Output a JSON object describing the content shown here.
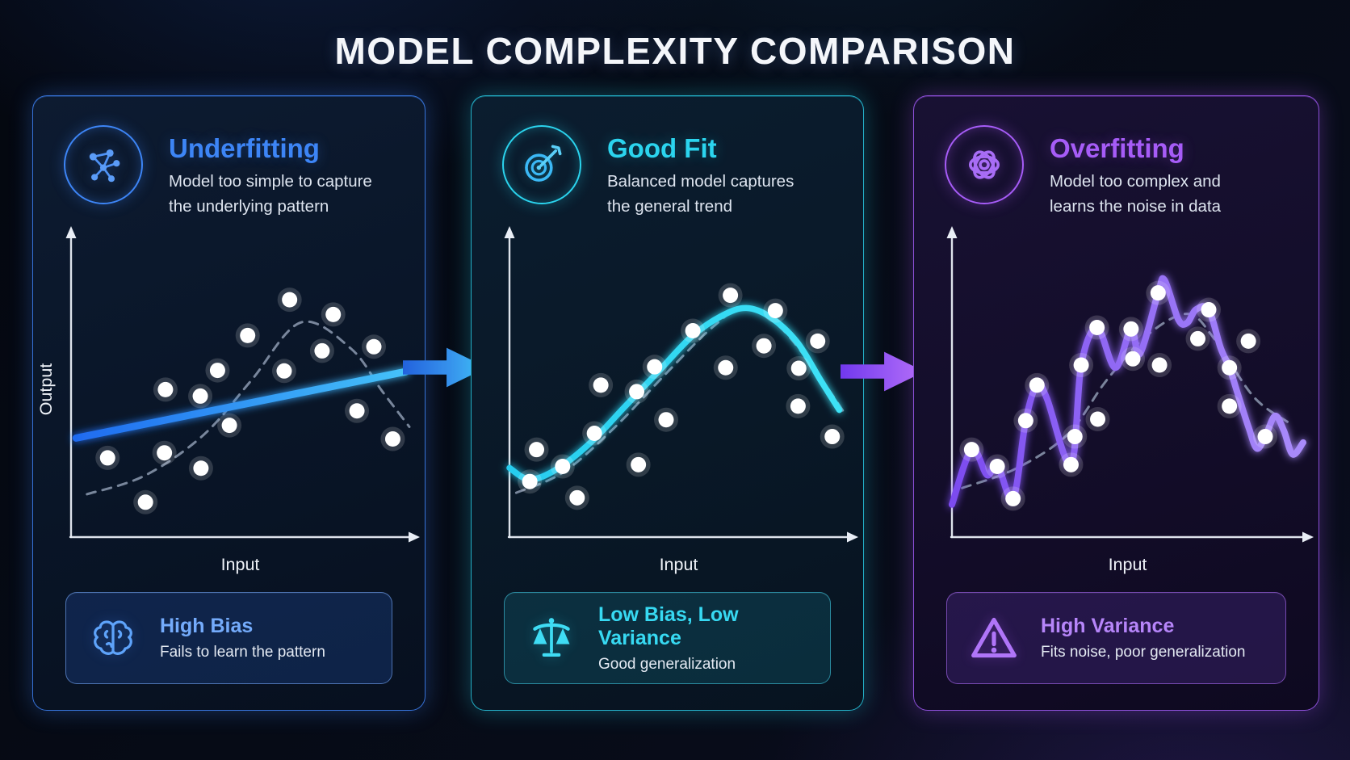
{
  "page": {
    "title": "MODEL COMPLEXITY COMPARISON"
  },
  "panels": [
    {
      "id": "underfitting",
      "title": "Underfitting",
      "description": "Model too simple to capture the underlying pattern",
      "icon": "network-icon",
      "accent": "#3d85f6",
      "accent_border": "rgba(62,130,246,0.85)",
      "accent_soft": "rgba(59,130,246,0.32)",
      "badge": {
        "icon": "brain-icon",
        "title": "High Bias",
        "subtitle": "Fails to learn the pattern",
        "bg": "rgba(43,98,216,0.22)",
        "border": "rgba(120,170,250,0.6)",
        "title_color": "#74abfb"
      }
    },
    {
      "id": "good-fit",
      "title": "Good Fit",
      "description": "Balanced model captures the general trend",
      "icon": "target-icon",
      "accent": "#2bd4ee",
      "accent_border": "rgba(43,212,238,0.8)",
      "accent_soft": "rgba(34,211,238,0.3)",
      "badge": {
        "icon": "scale-icon",
        "title": "Low Bias, Low Variance",
        "subtitle": "Good generalization",
        "bg": "rgba(24,135,160,0.22)",
        "border": "rgba(70,215,240,0.55)",
        "title_color": "#37d9f2"
      }
    },
    {
      "id": "overfitting",
      "title": "Overfitting",
      "description": "Model too complex and learns the noise in data",
      "icon": "knot-icon",
      "accent": "#a65cf7",
      "accent_border": "rgba(160,90,245,0.85)",
      "accent_soft": "rgba(168,85,247,0.32)",
      "badge": {
        "icon": "warning-icon",
        "title": "High Variance",
        "subtitle": "Fits noise, poor generalization",
        "bg": "rgba(120,70,220,0.2)",
        "border": "rgba(175,110,248,0.6)",
        "title_color": "#b685f9"
      }
    }
  ],
  "arrows": [
    {
      "direction": "right",
      "color_start": "#2262dd",
      "color_end": "#47b8f8"
    },
    {
      "direction": "right",
      "color_start": "#7138ee",
      "color_end": "#b672f9"
    }
  ],
  "chart_data": [
    {
      "type": "scatter",
      "title": "Underfitting",
      "xlabel": "Input",
      "ylabel": "Output",
      "x_range": [
        0,
        100
      ],
      "y_range": [
        0,
        100
      ],
      "grid": false,
      "points": [
        [
          10.8,
          26.8
        ],
        [
          22,
          11.8
        ],
        [
          27.9,
          49.9
        ],
        [
          27.6,
          28.5
        ],
        [
          38.2,
          47.7
        ],
        [
          38.4,
          23.3
        ],
        [
          43.3,
          56.4
        ],
        [
          46.8,
          37.8
        ],
        [
          52.2,
          68.2
        ],
        [
          63,
          56.2
        ],
        [
          64.6,
          80.3
        ],
        [
          74.2,
          63
        ],
        [
          77.5,
          75.3
        ],
        [
          84.5,
          42.7
        ],
        [
          89.5,
          64.4
        ],
        [
          95.1,
          33.2
        ]
      ],
      "point_color": "#ffffff",
      "fit": {
        "type": "line",
        "label": "linear model fit",
        "points": [
          [
            1.5,
            33.5
          ],
          [
            99,
            56
          ]
        ],
        "color_start": "#1f6bf0",
        "color_end": "#45c2f9",
        "width": 9
      },
      "true_curve": {
        "style": "dashed",
        "label": "underlying pattern",
        "color": "#95a3b9",
        "points": [
          [
            4.7,
            14.5
          ],
          [
            21.8,
            20.8
          ],
          [
            39.1,
            34.5
          ],
          [
            53.2,
            52.9
          ],
          [
            67.9,
            72.6
          ],
          [
            82.7,
            63.8
          ],
          [
            92,
            49.3
          ],
          [
            100,
            37.3
          ]
        ]
      }
    },
    {
      "type": "scatter",
      "title": "Good Fit",
      "xlabel": "Input",
      "ylabel": "",
      "x_range": [
        0,
        100
      ],
      "y_range": [
        0,
        100
      ],
      "grid": false,
      "points": [
        [
          6,
          18.8
        ],
        [
          8,
          29.6
        ],
        [
          15.7,
          23.9
        ],
        [
          20,
          13.3
        ],
        [
          25.1,
          35.1
        ],
        [
          27,
          51.4
        ],
        [
          37.6,
          49.2
        ],
        [
          38.1,
          24.5
        ],
        [
          42.9,
          57.6
        ],
        [
          46.3,
          39.7
        ],
        [
          54.2,
          69.8
        ],
        [
          63.9,
          57.3
        ],
        [
          65.3,
          81.8
        ],
        [
          75.2,
          64.7
        ],
        [
          78.6,
          76.6
        ],
        [
          85.5,
          57.1
        ],
        [
          85.3,
          44.3
        ],
        [
          91.1,
          66.3
        ],
        [
          95.4,
          34
        ]
      ],
      "point_color": "#ffffff",
      "fit": {
        "type": "curve",
        "label": "balanced model fit",
        "points": [
          [
            0,
            23.4
          ],
          [
            6,
            19.5
          ],
          [
            14,
            23
          ],
          [
            24,
            32
          ],
          [
            34,
            44
          ],
          [
            44,
            56
          ],
          [
            54,
            68
          ],
          [
            63,
            75
          ],
          [
            70,
            77.5
          ],
          [
            77,
            74.5
          ],
          [
            85,
            66
          ],
          [
            92,
            53
          ],
          [
            97.5,
            43
          ]
        ],
        "color_start": "#27cdef",
        "color_end": "#3ee2f6",
        "width": 7.5
      },
      "true_curve": {
        "style": "dashed",
        "label": "underlying pattern",
        "color": "#95a3b9",
        "points": [
          [
            2,
            15
          ],
          [
            16,
            22
          ],
          [
            31,
            37
          ],
          [
            46,
            55
          ],
          [
            60,
            71
          ],
          [
            70,
            78
          ],
          [
            80,
            71
          ],
          [
            90,
            57
          ],
          [
            99,
            42
          ]
        ]
      }
    },
    {
      "type": "scatter",
      "title": "Overfitting",
      "xlabel": "Input",
      "ylabel": "",
      "x_range": [
        0,
        100
      ],
      "y_range": [
        0,
        100
      ],
      "grid": false,
      "points": [
        [
          5.6,
          29.6
        ],
        [
          12.9,
          23.9
        ],
        [
          17.4,
          13
        ],
        [
          21,
          39.4
        ],
        [
          24.2,
          51.4
        ],
        [
          33.9,
          24.5
        ],
        [
          35,
          34
        ],
        [
          36.8,
          58.2
        ],
        [
          41.3,
          70.9
        ],
        [
          41.5,
          39.9
        ],
        [
          51,
          70.4
        ],
        [
          51.5,
          60.3
        ],
        [
          58.7,
          82.6
        ],
        [
          59.1,
          58.2
        ],
        [
          70,
          67.1
        ],
        [
          73.1,
          76.9
        ],
        [
          79,
          57.3
        ],
        [
          79,
          44.3
        ],
        [
          84.4,
          66.3
        ],
        [
          89.2,
          34
        ]
      ],
      "point_color": "#ffffff",
      "fit": {
        "type": "curve",
        "label": "overfit wiggly model",
        "points": [
          [
            0,
            11
          ],
          [
            5.6,
            29.6
          ],
          [
            10,
            21
          ],
          [
            12.9,
            24.5
          ],
          [
            17.4,
            13
          ],
          [
            21,
            39.4
          ],
          [
            24.2,
            51.4
          ],
          [
            27,
            47
          ],
          [
            33.9,
            24.5
          ],
          [
            36.8,
            58.2
          ],
          [
            41.3,
            70.9
          ],
          [
            46.5,
            57.3
          ],
          [
            51,
            70.4
          ],
          [
            53.5,
            62
          ],
          [
            58.7,
            82.6
          ],
          [
            60.5,
            87
          ],
          [
            64.5,
            73.5
          ],
          [
            67,
            72.5
          ],
          [
            69.5,
            77
          ],
          [
            73.1,
            76.9
          ],
          [
            76.5,
            64
          ],
          [
            79,
            57.3
          ],
          [
            81.5,
            48
          ],
          [
            84.5,
            37
          ],
          [
            86.8,
            30
          ],
          [
            89.2,
            34
          ],
          [
            92,
            41
          ],
          [
            94.5,
            36
          ],
          [
            97,
            28
          ],
          [
            100,
            32
          ]
        ],
        "color_start": "#7c4bf0",
        "color_end": "#a98bfa",
        "width": 8
      },
      "true_curve": {
        "style": "dashed",
        "label": "underlying pattern",
        "color": "#95a3b9",
        "points": [
          [
            2.9,
            16.6
          ],
          [
            18.1,
            23.1
          ],
          [
            33,
            34.8
          ],
          [
            44,
            53
          ],
          [
            55.5,
            68.2
          ],
          [
            67,
            75.5
          ],
          [
            74.5,
            67.4
          ],
          [
            85.8,
            47.6
          ],
          [
            95.5,
            39
          ]
        ]
      }
    }
  ]
}
